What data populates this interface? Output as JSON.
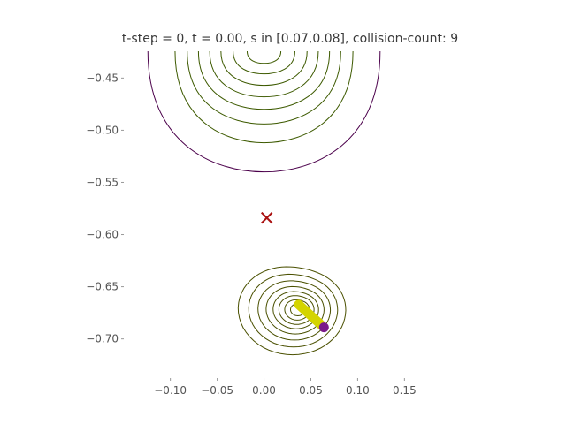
{
  "chart_data": {
    "type": "contour",
    "title": "t-step = 0, t = 0.00, s in [0.07,0.08], collision-count: 9",
    "xlabel": "",
    "ylabel": "",
    "xlim": [
      -0.145,
      0.195
    ],
    "ylim": [
      -0.735,
      -0.426
    ],
    "x_ticks": [
      {
        "value": -0.1,
        "label": "−0.10"
      },
      {
        "value": -0.05,
        "label": "−0.05"
      },
      {
        "value": 0.0,
        "label": "0.00"
      },
      {
        "value": 0.05,
        "label": "0.05"
      },
      {
        "value": 0.1,
        "label": "0.10"
      },
      {
        "value": 0.15,
        "label": "0.15"
      }
    ],
    "y_ticks": [
      {
        "value": -0.45,
        "label": "−0.45"
      },
      {
        "value": -0.5,
        "label": "−0.50"
      },
      {
        "value": -0.55,
        "label": "−0.55"
      },
      {
        "value": -0.6,
        "label": "−0.60"
      },
      {
        "value": -0.65,
        "label": "−0.65"
      },
      {
        "value": -0.7,
        "label": "−0.70"
      }
    ],
    "grid": false,
    "marker": {
      "symbol": "x",
      "x": 0.003,
      "y": -0.584,
      "color": "#aa1111"
    },
    "upper_contours": {
      "center_x": 0.0,
      "top_y": -0.426,
      "bottoms_y": [
        -0.436,
        -0.446,
        -0.457,
        -0.468,
        -0.48,
        -0.494,
        -0.512,
        -0.54
      ],
      "half_widths": [
        0.018,
        0.033,
        0.046,
        0.058,
        0.07,
        0.082,
        0.095,
        0.124
      ],
      "colors": [
        "#3d5a00",
        "#3d5a00",
        "#3d5a00",
        "#3d5a00",
        "#3d5a00",
        "#3d5a00",
        "#3d5a00",
        "#4b004b"
      ]
    },
    "lower_contours": {
      "center_x": 0.037,
      "center_y": -0.672,
      "levels": [
        0.007,
        0.012,
        0.017,
        0.022,
        0.028,
        0.035,
        0.043,
        0.052
      ],
      "color": "#4a5000"
    },
    "segment": {
      "x1": 0.037,
      "y1": -0.667,
      "x2": 0.064,
      "y2": -0.689,
      "color": "#d4d400",
      "width": 0.004
    },
    "endpoint": {
      "x": 0.064,
      "y": -0.689,
      "color": "#7a1a8a"
    }
  }
}
